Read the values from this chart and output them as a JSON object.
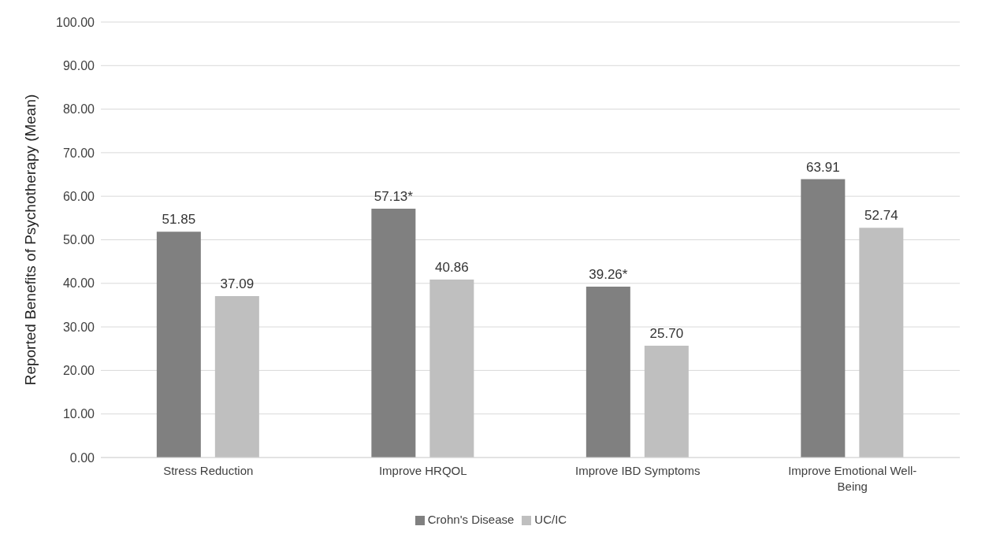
{
  "chart_data": {
    "type": "bar",
    "ylabel": "Reported Benefits of Psychotherapy (Mean)",
    "categories": [
      "Stress Reduction",
      "Improve HRQOL",
      "Improve IBD Symptoms",
      "Improve Emotional Well-Being"
    ],
    "series": [
      {
        "name": "Crohn's Disease",
        "color": "#808080",
        "values": [
          51.85,
          57.13,
          39.26,
          63.91
        ],
        "value_labels": [
          "51.85",
          "57.13*",
          "39.26*",
          "63.91"
        ]
      },
      {
        "name": "UC/IC",
        "color": "#bfbfbf",
        "values": [
          37.09,
          40.86,
          25.7,
          52.74
        ],
        "value_labels": [
          "37.09",
          "40.86",
          "25.70",
          "52.74"
        ]
      }
    ],
    "ylim": [
      0,
      100
    ],
    "yticks": [
      {
        "value": 0,
        "label": "0.00"
      },
      {
        "value": 10,
        "label": "10.00"
      },
      {
        "value": 20,
        "label": "20.00"
      },
      {
        "value": 30,
        "label": "30.00"
      },
      {
        "value": 40,
        "label": "40.00"
      },
      {
        "value": 50,
        "label": "50.00"
      },
      {
        "value": 60,
        "label": "60.00"
      },
      {
        "value": 70,
        "label": "70.00"
      },
      {
        "value": 80,
        "label": "80.00"
      },
      {
        "value": 90,
        "label": "90.00"
      },
      {
        "value": 100,
        "label": "100.00"
      }
    ],
    "grid": "y",
    "legend": "bottom"
  }
}
